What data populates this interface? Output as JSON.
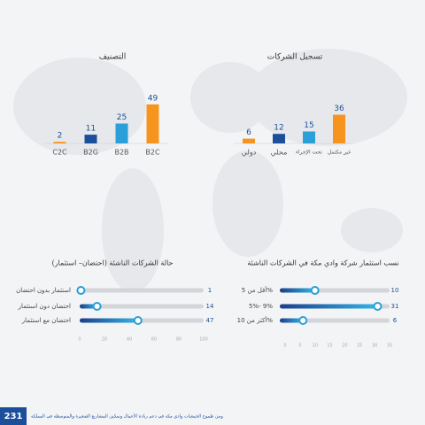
{
  "chart_data": [
    {
      "type": "bar",
      "title": "التصنيف",
      "categories": [
        "C2C",
        "B2G",
        "B2B",
        "B2C"
      ],
      "values": [
        2,
        11,
        25,
        49
      ],
      "colors": [
        "#f7941d",
        "#1b4f9c",
        "#2a9fd8",
        "#f7941d"
      ],
      "ylim": [
        0,
        100
      ]
    },
    {
      "type": "bar",
      "title": "تسجيل الشركات",
      "categories": [
        "دولي",
        "محلي",
        "تحت الإجراء",
        "غير مكتمل"
      ],
      "values": [
        6,
        12,
        15,
        36
      ],
      "colors": [
        "#f7941d",
        "#1b4f9c",
        "#2a9fd8",
        "#f7941d"
      ],
      "ylim": [
        0,
        100
      ]
    },
    {
      "type": "slider",
      "title": "حالة الشركات الناشئة (احتضان– استثمار)",
      "categories": [
        "استثمار بدون احتضان",
        "احتضان دون استثمار",
        "احتضان مع استثمار"
      ],
      "values": [
        1,
        14,
        47
      ],
      "xlim": [
        0,
        100
      ],
      "xticks": [
        0,
        20,
        40,
        60,
        80,
        100
      ]
    },
    {
      "type": "slider",
      "title": "نسب استثمار شركة وادي مكة في الشركات الناشئة",
      "categories": [
        "أقل من 5%",
        "5%- 9%",
        "أكثر من 10%"
      ],
      "values": [
        10,
        31,
        6
      ],
      "xlim": [
        0,
        35
      ],
      "xticks": [
        0,
        5,
        10,
        15,
        20,
        25,
        30,
        35
      ]
    }
  ],
  "page_number": "231",
  "footer_text": "ومن طموح الجمعيات وادي مكة في دعم ريادة الأعمال وتمكين المشاريع الصغيرة والمتوسطة في المملكة"
}
